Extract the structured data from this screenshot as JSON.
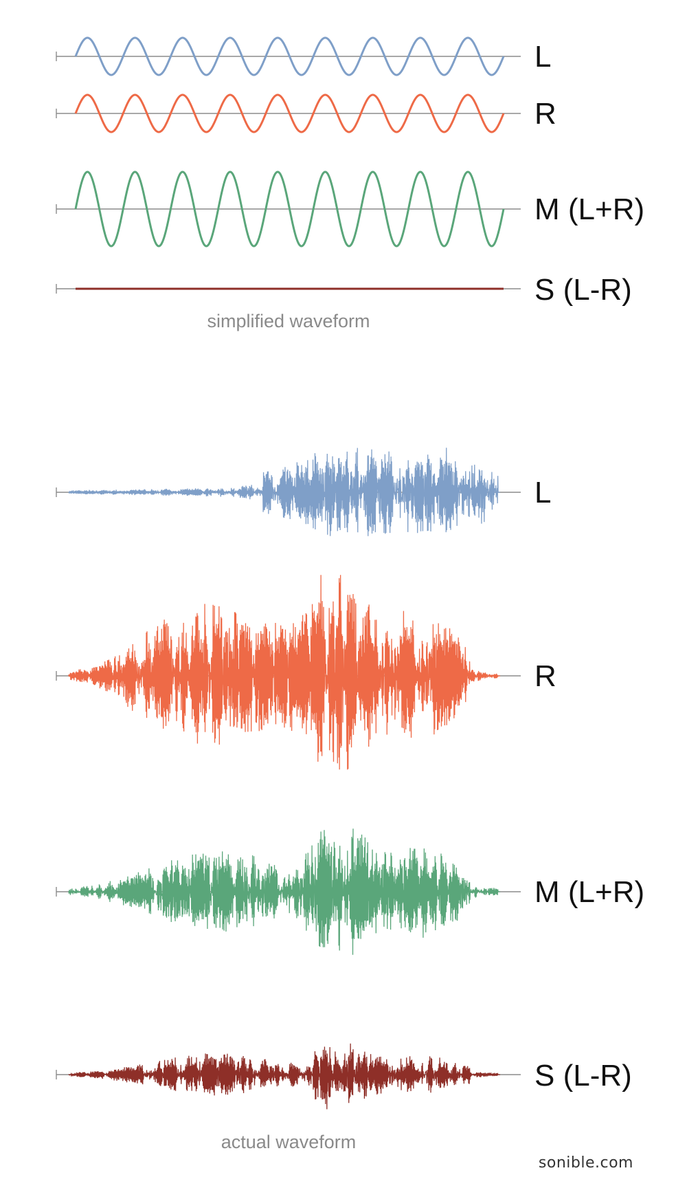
{
  "colors": {
    "left": "#7f9fc8",
    "right": "#ee6a47",
    "mid": "#5aa67a",
    "side": "#8e2f28",
    "baseline": "#8c8c8c"
  },
  "simplified": {
    "caption": "simplified waveform",
    "cycles": 9,
    "channels": [
      {
        "key": "L",
        "label": "L",
        "color": "left",
        "amplitude": 1.0
      },
      {
        "key": "R",
        "label": "R",
        "color": "right",
        "amplitude": 1.0
      },
      {
        "key": "M",
        "label": "M (L+R)",
        "color": "mid",
        "amplitude": 2.0
      },
      {
        "key": "S",
        "label": "S (L-R)",
        "color": "side",
        "amplitude": 0.0
      }
    ]
  },
  "actual": {
    "caption": "actual waveform",
    "channels": [
      {
        "key": "L",
        "label": "L",
        "color": "left",
        "amplitude": 0.33
      },
      {
        "key": "R",
        "label": "R",
        "color": "right",
        "amplitude": 0.78
      },
      {
        "key": "M",
        "label": "M (L+R)",
        "color": "mid",
        "amplitude": 0.52
      },
      {
        "key": "S",
        "label": "S (L-R)",
        "color": "side",
        "amplitude": 0.26
      }
    ]
  },
  "brand": "sonible.com"
}
